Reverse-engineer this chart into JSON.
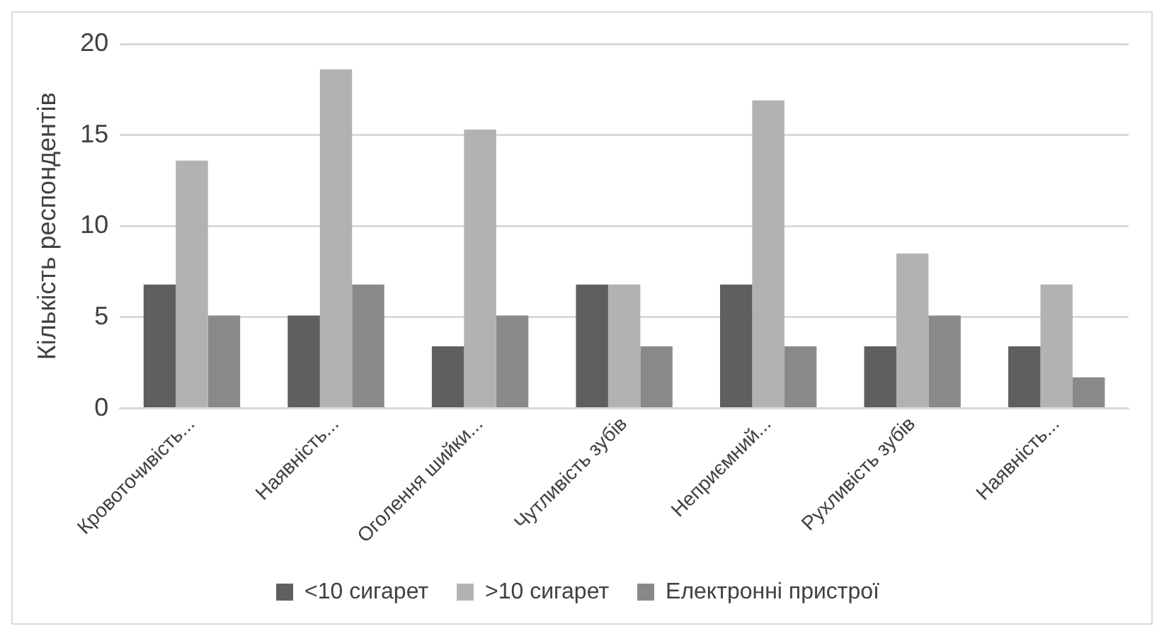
{
  "chart_data": {
    "type": "bar",
    "ylabel": "Кількість респондентів",
    "categories": [
      "Кровоточивість...",
      "Наявність...",
      "Оголення шийки...",
      "Чутливість зубів",
      "Неприємний...",
      "Рухливість зубів",
      "Наявність..."
    ],
    "series": [
      {
        "name": "<10 сигарет",
        "color": "#5f5f5f",
        "values": [
          6.8,
          5.1,
          3.4,
          6.8,
          6.8,
          3.4,
          3.4
        ]
      },
      {
        "name": ">10 сигарет",
        "color": "#b2b2b2",
        "values": [
          13.6,
          18.6,
          15.3,
          6.8,
          16.9,
          8.5,
          6.8
        ]
      },
      {
        "name": "Електронні пристрої",
        "color": "#898989",
        "values": [
          5.1,
          6.8,
          5.1,
          3.4,
          3.4,
          5.1,
          1.7
        ]
      }
    ],
    "ylim": [
      0,
      20
    ],
    "yticks": [
      0,
      5,
      10,
      15,
      20
    ],
    "grid": "y",
    "legend": "bottom"
  }
}
